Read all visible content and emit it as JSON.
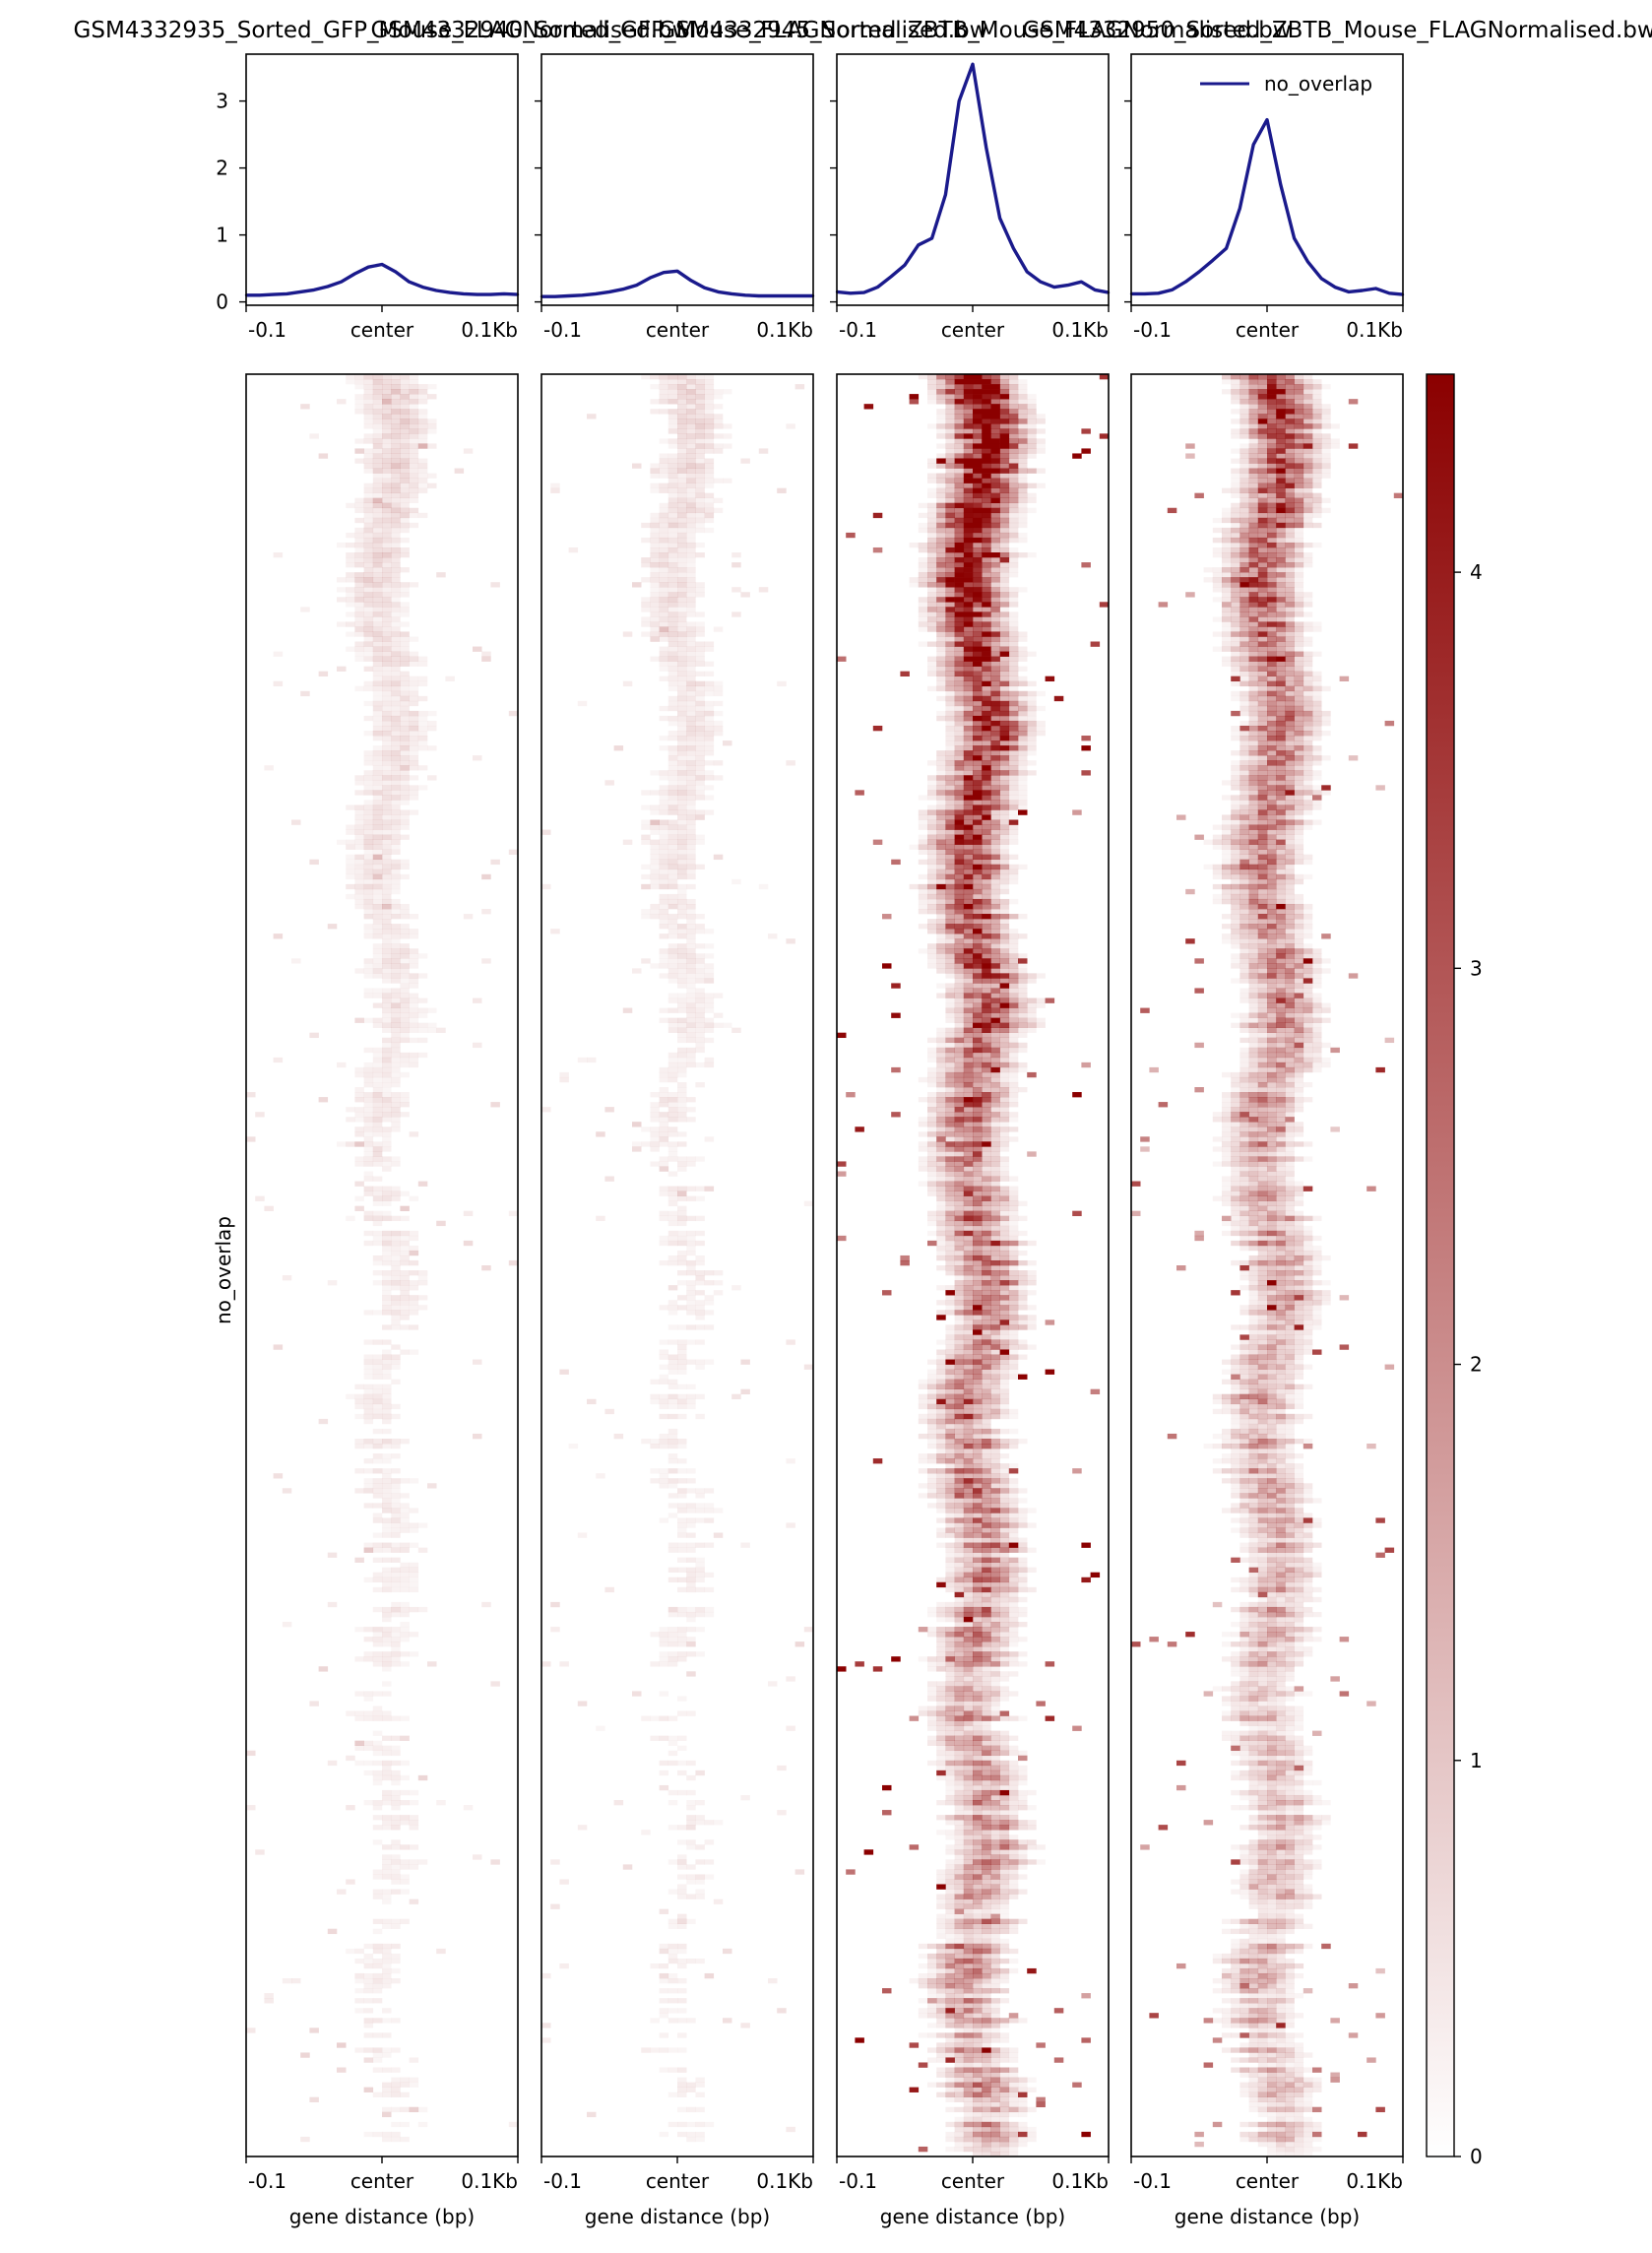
{
  "figure": {
    "panel_titles": [
      "GSM4332935_Sorted_GFP_Mouse_FLAGNormalised.bw",
      "GSM4332940_Sorted_GFP_Mouse_FLAGNormalised.bw",
      "GSM4332945_Sorted_ZBTB_Mouse_FLAGNormalised.bw",
      "GSM4332950_Sorted_ZBTB_Mouse_FLAGNormalised.bw"
    ],
    "tick_labels": [
      "-0.1",
      "center",
      "0.1Kb"
    ],
    "xlabel": "gene distance (bp)",
    "group_label": "no_overlap",
    "colors": {
      "profile": "#1a1a8c",
      "heat_high": "#8b0000",
      "heat_low": "#ffffff"
    }
  },
  "chart_data": {
    "type": "heatmap",
    "profiles": {
      "type": "line",
      "x": [
        -100,
        -90,
        -80,
        -70,
        -60,
        -50,
        -40,
        -30,
        -20,
        -10,
        0,
        10,
        20,
        30,
        40,
        50,
        60,
        70,
        80,
        90,
        100
      ],
      "ylim": [
        -0.05,
        3.7
      ],
      "yticks": [
        0,
        1,
        2,
        3
      ],
      "legend": {
        "entries": [
          "no_overlap"
        ],
        "position": "upper-right"
      },
      "series": [
        {
          "name": "no_overlap",
          "values": [
            0.1,
            0.1,
            0.11,
            0.12,
            0.15,
            0.18,
            0.23,
            0.3,
            0.42,
            0.52,
            0.56,
            0.45,
            0.3,
            0.22,
            0.17,
            0.14,
            0.12,
            0.11,
            0.11,
            0.12,
            0.11
          ]
        },
        {
          "name": "no_overlap",
          "values": [
            0.08,
            0.08,
            0.09,
            0.1,
            0.12,
            0.15,
            0.19,
            0.25,
            0.36,
            0.44,
            0.46,
            0.32,
            0.21,
            0.15,
            0.12,
            0.1,
            0.09,
            0.09,
            0.09,
            0.09,
            0.09
          ]
        },
        {
          "name": "no_overlap",
          "values": [
            0.15,
            0.13,
            0.14,
            0.22,
            0.38,
            0.55,
            0.85,
            0.95,
            1.6,
            3.0,
            3.55,
            2.3,
            1.25,
            0.8,
            0.45,
            0.3,
            0.22,
            0.25,
            0.3,
            0.18,
            0.14
          ]
        },
        {
          "name": "no_overlap",
          "values": [
            0.12,
            0.12,
            0.13,
            0.18,
            0.3,
            0.45,
            0.62,
            0.8,
            1.4,
            2.35,
            2.72,
            1.75,
            0.95,
            0.6,
            0.35,
            0.22,
            0.15,
            0.17,
            0.2,
            0.13,
            0.11
          ]
        }
      ]
    },
    "heatmap": {
      "colorbar_range": [
        0,
        4.5
      ],
      "colorbar_ticks": [
        0,
        1,
        2,
        3,
        4
      ],
      "relative_signal": [
        0.35,
        0.3,
        2.6,
        1.7
      ]
    }
  }
}
